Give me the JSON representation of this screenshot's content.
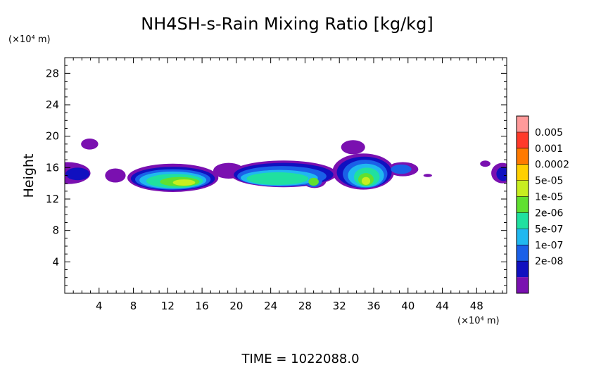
{
  "chart_data": {
    "type": "heatmap",
    "title": "NH4SH-s-Rain Mixing Ratio [kg/kg]",
    "ylabel": "Height",
    "y_unit": "(×10⁴ m)",
    "x_unit": "(×10⁴ m)",
    "xlim": [
      0,
      51.5
    ],
    "ylim": [
      0,
      30
    ],
    "x_ticks": [
      4,
      8,
      12,
      16,
      20,
      24,
      28,
      32,
      36,
      40,
      44,
      48
    ],
    "y_ticks": [
      4,
      8,
      12,
      16,
      20,
      24,
      28
    ],
    "x_tick_labels": [
      "4",
      "8",
      "12",
      "16",
      "20",
      "24",
      "28",
      "32",
      "36",
      "40",
      "44",
      "48"
    ],
    "y_tick_labels": [
      "4",
      "8",
      "12",
      "16",
      "20",
      "24",
      "28"
    ],
    "colorbar": {
      "labels": [
        "0.005",
        "0.001",
        "0.0002",
        "5e-05",
        "1e-05",
        "2e-06",
        "5e-07",
        "1e-07",
        "2e-08"
      ],
      "colors": [
        "#ff9a9a",
        "#ff3a2a",
        "#ff7a00",
        "#ffd000",
        "#c8ee20",
        "#60e030",
        "#20e0a0",
        "#20b8f0",
        "#1a60e8",
        "#1010c0",
        "#7a10b0"
      ]
    },
    "footer": "TIME =  1022088.0",
    "regions": [
      {
        "x": 0.3,
        "y": 15.3,
        "rx": 2.7,
        "ry": 1.4,
        "level": 0
      },
      {
        "x": 1.5,
        "y": 15.2,
        "rx": 1.4,
        "ry": 0.8,
        "level": 1
      },
      {
        "x": 2.9,
        "y": 19.0,
        "rx": 1.0,
        "ry": 0.7,
        "level": 0
      },
      {
        "x": 5.9,
        "y": 15.0,
        "rx": 1.2,
        "ry": 0.9,
        "level": 0
      },
      {
        "x": 12.6,
        "y": 14.7,
        "rx": 5.3,
        "ry": 1.8,
        "level": 0
      },
      {
        "x": 12.6,
        "y": 14.6,
        "rx": 4.9,
        "ry": 1.5,
        "level": 1
      },
      {
        "x": 12.6,
        "y": 14.5,
        "rx": 4.4,
        "ry": 1.3,
        "level": 2
      },
      {
        "x": 12.6,
        "y": 14.4,
        "rx": 3.9,
        "ry": 1.1,
        "level": 3
      },
      {
        "x": 12.8,
        "y": 14.3,
        "rx": 3.3,
        "ry": 0.9,
        "level": 4
      },
      {
        "x": 13.4,
        "y": 14.2,
        "rx": 2.3,
        "ry": 0.6,
        "level": 5
      },
      {
        "x": 13.9,
        "y": 14.1,
        "rx": 1.3,
        "ry": 0.4,
        "level": 6
      },
      {
        "x": 19.1,
        "y": 15.6,
        "rx": 1.8,
        "ry": 1.0,
        "level": 0
      },
      {
        "x": 25.5,
        "y": 15.2,
        "rx": 6.2,
        "ry": 1.7,
        "level": 0
      },
      {
        "x": 25.5,
        "y": 15.1,
        "rx": 5.8,
        "ry": 1.5,
        "level": 1
      },
      {
        "x": 25.3,
        "y": 14.9,
        "rx": 5.2,
        "ry": 1.3,
        "level": 2
      },
      {
        "x": 25.0,
        "y": 14.7,
        "rx": 4.5,
        "ry": 1.0,
        "level": 3
      },
      {
        "x": 24.8,
        "y": 14.6,
        "rx": 3.6,
        "ry": 0.8,
        "level": 4
      },
      {
        "x": 29.1,
        "y": 14.4,
        "rx": 1.4,
        "ry": 1.0,
        "level": 0
      },
      {
        "x": 29.0,
        "y": 14.3,
        "rx": 1.0,
        "ry": 0.8,
        "level": 2
      },
      {
        "x": 29.0,
        "y": 14.2,
        "rx": 0.6,
        "ry": 0.5,
        "level": 5
      },
      {
        "x": 30.5,
        "y": 15.5,
        "rx": 0.6,
        "ry": 0.6,
        "level": 0
      },
      {
        "x": 33.6,
        "y": 18.6,
        "rx": 1.4,
        "ry": 0.9,
        "level": 0
      },
      {
        "x": 34.8,
        "y": 15.5,
        "rx": 3.6,
        "ry": 2.3,
        "level": 0
      },
      {
        "x": 34.9,
        "y": 15.4,
        "rx": 3.2,
        "ry": 2.0,
        "level": 1
      },
      {
        "x": 35.0,
        "y": 15.2,
        "rx": 2.6,
        "ry": 1.8,
        "level": 2
      },
      {
        "x": 35.1,
        "y": 15.0,
        "rx": 2.1,
        "ry": 1.5,
        "level": 3
      },
      {
        "x": 35.2,
        "y": 14.8,
        "rx": 1.5,
        "ry": 1.2,
        "level": 4
      },
      {
        "x": 35.1,
        "y": 14.5,
        "rx": 0.9,
        "ry": 0.8,
        "level": 5
      },
      {
        "x": 35.1,
        "y": 14.3,
        "rx": 0.5,
        "ry": 0.5,
        "level": 6
      },
      {
        "x": 39.4,
        "y": 15.8,
        "rx": 1.8,
        "ry": 0.9,
        "level": 0
      },
      {
        "x": 39.2,
        "y": 15.8,
        "rx": 1.2,
        "ry": 0.6,
        "level": 2
      },
      {
        "x": 42.3,
        "y": 15.0,
        "rx": 0.5,
        "ry": 0.2,
        "level": 0
      },
      {
        "x": 49.0,
        "y": 16.5,
        "rx": 0.6,
        "ry": 0.4,
        "level": 0
      },
      {
        "x": 51.0,
        "y": 15.3,
        "rx": 1.3,
        "ry": 1.3,
        "level": 0
      },
      {
        "x": 51.1,
        "y": 15.2,
        "rx": 0.8,
        "ry": 0.9,
        "level": 1
      }
    ]
  }
}
